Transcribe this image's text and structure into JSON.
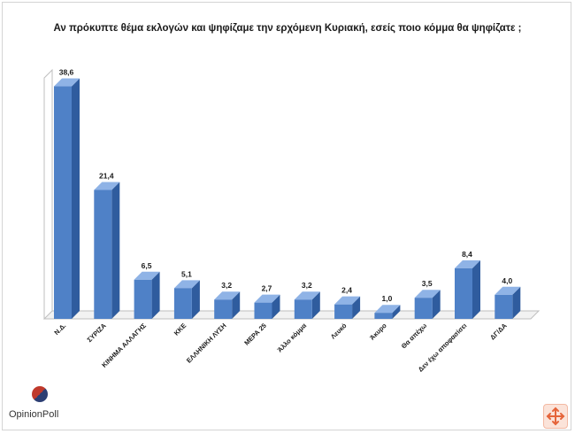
{
  "page": {
    "logo_text": "OpinionPoll",
    "icons": {
      "logo": "opinionpoll-logo-icon",
      "zoom": "expand-arrows-icon"
    },
    "colors": {
      "bar": "#4f81c7",
      "bar_side": "#2f5c9e",
      "bar_top": "#8fb3e6",
      "accent": "#e5643a"
    }
  },
  "chart_data": {
    "type": "bar",
    "title": "Αν πρόκυπτε θέμα εκλογών και ψηφίζαμε την ερχόμενη Κυριακή, εσείς ποιο κόμμα θα ψηφίζατε ;",
    "categories": [
      "Ν.Δ.",
      "ΣΥΡΙΖΑ",
      "ΚΙΝΗΜΑ ΑΛΛΑΓΗΣ",
      "ΚΚΕ",
      "ΕΛΛΗΝΙΚΗ ΛΥΣΗ",
      "ΜΕΡΑ 25",
      "Άλλο κόμμα",
      "Λευκό",
      "Άκυρο",
      "Θα απέχω",
      "Δεν έχω αποφασίσει",
      "ΔΓ/ΔΑ"
    ],
    "values": [
      38.6,
      21.4,
      6.5,
      5.1,
      3.2,
      2.7,
      3.2,
      2.4,
      1.0,
      3.5,
      8.4,
      4.0
    ],
    "value_labels": [
      "38,6",
      "21,4",
      "6,5",
      "5,1",
      "3,2",
      "2,7",
      "3,2",
      "2,4",
      "1,0",
      "3,5",
      "8,4",
      "4,0"
    ],
    "xlabel": "",
    "ylabel": "",
    "ylim": [
      0,
      40
    ],
    "grid": false,
    "legend": "none"
  }
}
